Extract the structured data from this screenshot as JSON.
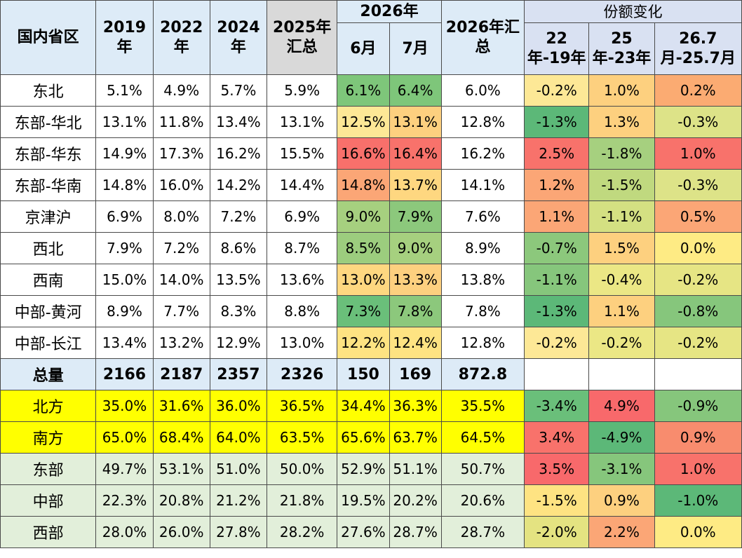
{
  "header": {
    "region": "国内省区",
    "y2019": "2019年",
    "y2022": "2022年",
    "y2024": "2024年",
    "y2025sum": "2025年汇总",
    "y2026": "2026年",
    "m6": "6月",
    "m7": "7月",
    "y2026sum": "2026年汇总",
    "share_change": "份额变化",
    "c1": "22年-19年",
    "c2": "25年-23年",
    "c3": "26.7月-25.7月"
  },
  "rows": [
    {
      "region": "东北",
      "v2019": "5.1%",
      "v2022": "4.9%",
      "v2024": "5.7%",
      "v2025": "5.9%",
      "m6": "6.1%",
      "m7": "6.4%",
      "v2026": "6.0%",
      "c1": "-0.2%",
      "c2": "1.0%",
      "c3": "0.2%"
    },
    {
      "region": "东部-华北",
      "v2019": "13.1%",
      "v2022": "11.8%",
      "v2024": "13.4%",
      "v2025": "13.1%",
      "m6": "12.5%",
      "m7": "13.1%",
      "v2026": "12.8%",
      "c1": "-1.3%",
      "c2": "1.3%",
      "c3": "-0.3%"
    },
    {
      "region": "东部-华东",
      "v2019": "14.9%",
      "v2022": "17.3%",
      "v2024": "16.2%",
      "v2025": "15.5%",
      "m6": "16.6%",
      "m7": "16.4%",
      "v2026": "16.2%",
      "c1": "2.5%",
      "c2": "-1.8%",
      "c3": "1.0%"
    },
    {
      "region": "东部-华南",
      "v2019": "14.8%",
      "v2022": "16.0%",
      "v2024": "14.2%",
      "v2025": "14.4%",
      "m6": "14.8%",
      "m7": "13.7%",
      "v2026": "14.1%",
      "c1": "1.2%",
      "c2": "-1.5%",
      "c3": "-0.3%"
    },
    {
      "region": "京津沪",
      "v2019": "6.9%",
      "v2022": "8.0%",
      "v2024": "7.2%",
      "v2025": "6.9%",
      "m6": "9.0%",
      "m7": "7.9%",
      "v2026": "7.6%",
      "c1": "1.1%",
      "c2": "-1.1%",
      "c3": "0.5%"
    },
    {
      "region": "西北",
      "v2019": "7.9%",
      "v2022": "7.2%",
      "v2024": "8.6%",
      "v2025": "8.7%",
      "m6": "8.5%",
      "m7": "9.0%",
      "v2026": "8.9%",
      "c1": "-0.7%",
      "c2": "1.5%",
      "c3": "0.0%"
    },
    {
      "region": "西南",
      "v2019": "15.0%",
      "v2022": "14.0%",
      "v2024": "13.5%",
      "v2025": "13.6%",
      "m6": "13.0%",
      "m7": "13.3%",
      "v2026": "13.8%",
      "c1": "-1.1%",
      "c2": "-0.4%",
      "c3": "-0.2%"
    },
    {
      "region": "中部-黄河",
      "v2019": "8.9%",
      "v2022": "7.7%",
      "v2024": "8.3%",
      "v2025": "8.8%",
      "m6": "7.3%",
      "m7": "7.8%",
      "v2026": "7.8%",
      "c1": "-1.3%",
      "c2": "1.1%",
      "c3": "-0.8%"
    },
    {
      "region": "中部-长江",
      "v2019": "13.4%",
      "v2022": "13.2%",
      "v2024": "12.9%",
      "v2025": "13.0%",
      "m6": "12.2%",
      "m7": "12.4%",
      "v2026": "12.8%",
      "c1": "-0.2%",
      "c2": "-0.2%",
      "c3": "-0.2%"
    }
  ],
  "total": {
    "label": "总量",
    "v2019": "2166",
    "v2022": "2187",
    "v2024": "2357",
    "v2025": "2326",
    "m6": "150",
    "m7": "169",
    "v2026": "872.8"
  },
  "groups": [
    {
      "region": "北方",
      "v2019": "35.0%",
      "v2022": "31.6%",
      "v2024": "36.0%",
      "v2025": "36.5%",
      "m6": "34.4%",
      "m7": "36.3%",
      "v2026": "35.5%",
      "c1": "-3.4%",
      "c2": "4.9%",
      "c3": "-0.9%"
    },
    {
      "region": "南方",
      "v2019": "65.0%",
      "v2022": "68.4%",
      "v2024": "64.0%",
      "v2025": "63.5%",
      "m6": "65.6%",
      "m7": "63.7%",
      "v2026": "64.5%",
      "c1": "3.4%",
      "c2": "-4.9%",
      "c3": "0.9%"
    },
    {
      "region": "东部",
      "v2019": "49.7%",
      "v2022": "53.1%",
      "v2024": "51.0%",
      "v2025": "50.0%",
      "m6": "52.9%",
      "m7": "51.1%",
      "v2026": "50.7%",
      "c1": "3.5%",
      "c2": "-3.1%",
      "c3": "1.0%"
    },
    {
      "region": "中部",
      "v2019": "22.3%",
      "v2022": "20.8%",
      "v2024": "21.2%",
      "v2025": "21.8%",
      "m6": "19.5%",
      "m7": "20.2%",
      "v2026": "20.6%",
      "c1": "-1.5%",
      "c2": "0.9%",
      "c3": "-1.0%"
    },
    {
      "region": "西部",
      "v2019": "28.0%",
      "v2022": "26.0%",
      "v2024": "27.8%",
      "v2025": "28.2%",
      "m6": "27.6%",
      "m7": "28.7%",
      "v2026": "28.7%",
      "c1": "-2.0%",
      "c2": "2.2%",
      "c3": "0.0%"
    }
  ],
  "heat": {
    "rows": [
      {
        "m6": "#7ec67a",
        "m7": "#7ec67a",
        "c1": "#fde896",
        "c2": "#fdd07f",
        "c3": "#fbab72"
      },
      {
        "m6": "#fde896",
        "m7": "#fdd07f",
        "c1": "#5cb878",
        "c2": "#fdd07f",
        "c3": "#dde388"
      },
      {
        "m6": "#f8706b",
        "m7": "#f8726b",
        "c1": "#f8726b",
        "c2": "#a6d07f",
        "c3": "#f8726b"
      },
      {
        "m6": "#fba676",
        "m7": "#fed780",
        "c1": "#fba676",
        "c2": "#c0d97f",
        "c3": "#dde388"
      },
      {
        "m6": "#a6d07f",
        "m7": "#8cc87c",
        "c1": "#fba676",
        "c2": "#d4e082",
        "c3": "#fba676"
      },
      {
        "m6": "#9ccd7e",
        "m7": "#a6d07f",
        "c1": "#8cc87c",
        "c2": "#fdd07f",
        "c3": "#feeb84"
      },
      {
        "m6": "#fed780",
        "m7": "#fdd07f",
        "c1": "#86c67c",
        "c2": "#ebe785",
        "c3": "#e6e584"
      },
      {
        "m6": "#6abf7a",
        "m7": "#8cc87c",
        "c1": "#5cb878",
        "c2": "#fdd07f",
        "c3": "#86c67c"
      },
      {
        "m6": "#fee382",
        "m7": "#fee382",
        "c1": "#fde896",
        "c2": "#ebe785",
        "c3": "#e6e584"
      }
    ],
    "groups": [
      {
        "c1": "#6abf7a",
        "c2": "#f8696b",
        "c3": "#86c67c"
      },
      {
        "c1": "#f8726b",
        "c2": "#5cb878",
        "c3": "#f88c6e"
      },
      {
        "c1": "#f8696b",
        "c2": "#86c67c",
        "c3": "#f8726b"
      },
      {
        "c1": "#fee382",
        "c2": "#fdd07f",
        "c3": "#5cb878"
      },
      {
        "c1": "#e4e381",
        "c2": "#fba676",
        "c3": "#feeb84"
      }
    ]
  }
}
